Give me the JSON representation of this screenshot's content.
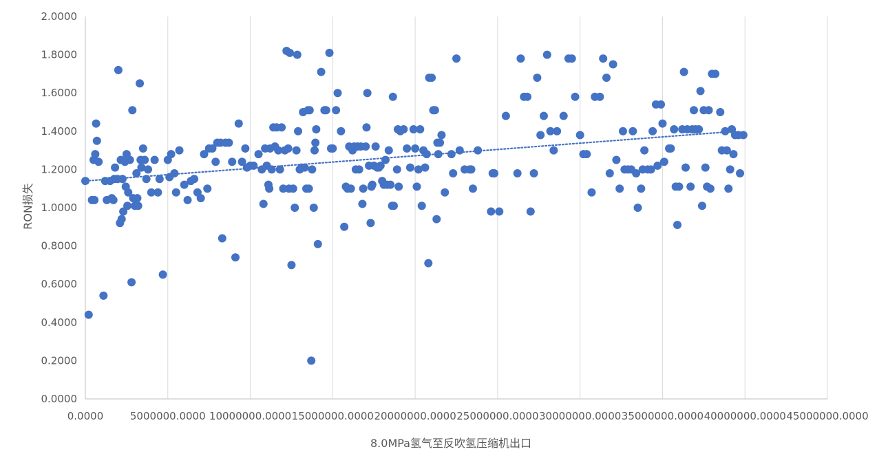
{
  "chart_data": {
    "type": "scatter",
    "title": "",
    "xlabel": "8.0MPa氢气至反吹氢压缩机出口",
    "ylabel": "RON损失",
    "xlim": [
      0,
      45000000
    ],
    "ylim": [
      0,
      2.0
    ],
    "x_ticks": [
      0,
      5000000,
      10000000,
      15000000,
      20000000,
      25000000,
      30000000,
      35000000,
      40000000,
      45000000
    ],
    "x_tick_labels": [
      "0.0000",
      "5000000.0000",
      "10000000.0000",
      "15000000.0000",
      "20000000.0000",
      "25000000.0000",
      "30000000.0000",
      "35000000.0000",
      "40000000.0000",
      "45000000.0000"
    ],
    "y_ticks": [
      0,
      0.2,
      0.4,
      0.6,
      0.8,
      1.0,
      1.2,
      1.4,
      1.6,
      1.8,
      2.0
    ],
    "y_tick_labels": [
      "0.0000",
      "0.2000",
      "0.4000",
      "0.6000",
      "0.8000",
      "1.0000",
      "1.2000",
      "1.4000",
      "1.6000",
      "1.8000",
      "2.0000"
    ],
    "grid": "vertical",
    "legend": "none",
    "trendline": {
      "type": "linear",
      "x": [
        0,
        39500000
      ],
      "y": [
        1.14,
        1.4
      ]
    },
    "colors": {
      "marker": "#4472c4",
      "trendline": "#4472c4",
      "grid": "#d9d9d9",
      "axis": "#bfbfbf",
      "text": "#595959"
    },
    "series": [
      {
        "points": [
          [
            0,
            1.14
          ],
          [
            200000,
            0.44
          ],
          [
            400000,
            1.04
          ],
          [
            500000,
            1.25
          ],
          [
            550000,
            1.04
          ],
          [
            600000,
            1.28
          ],
          [
            650000,
            1.44
          ],
          [
            700000,
            1.35
          ],
          [
            800000,
            1.24
          ],
          [
            1100000,
            0.54
          ],
          [
            1200000,
            1.14
          ],
          [
            1300000,
            1.04
          ],
          [
            1500000,
            1.14
          ],
          [
            1600000,
            1.05
          ],
          [
            1700000,
            1.04
          ],
          [
            1750000,
            1.15
          ],
          [
            1800000,
            1.21
          ],
          [
            1950000,
            1.15
          ],
          [
            2000000,
            1.72
          ],
          [
            2100000,
            0.92
          ],
          [
            2200000,
            0.94
          ],
          [
            2150000,
            1.25
          ],
          [
            2300000,
            0.98
          ],
          [
            2250000,
            1.15
          ],
          [
            2400000,
            1.24
          ],
          [
            2450000,
            1.11
          ],
          [
            2500000,
            1.28
          ],
          [
            2550000,
            1.01
          ],
          [
            2600000,
            1.08
          ],
          [
            2700000,
            1.25
          ],
          [
            2800000,
            0.61
          ],
          [
            2850000,
            1.51
          ],
          [
            2900000,
            1.05
          ],
          [
            3000000,
            1.01
          ],
          [
            3100000,
            1.18
          ],
          [
            3150000,
            1.05
          ],
          [
            3200000,
            1.01
          ],
          [
            3300000,
            1.65
          ],
          [
            3350000,
            1.25
          ],
          [
            3400000,
            1.21
          ],
          [
            3500000,
            1.31
          ],
          [
            3600000,
            1.25
          ],
          [
            3700000,
            1.15
          ],
          [
            3800000,
            1.2
          ],
          [
            4000000,
            1.08
          ],
          [
            4200000,
            1.25
          ],
          [
            4400000,
            1.08
          ],
          [
            4500000,
            1.15
          ],
          [
            4700000,
            0.65
          ],
          [
            5000000,
            1.25
          ],
          [
            5100000,
            1.16
          ],
          [
            5200000,
            1.28
          ],
          [
            5400000,
            1.18
          ],
          [
            5500000,
            1.08
          ],
          [
            5700000,
            1.3
          ],
          [
            6000000,
            1.12
          ],
          [
            6200000,
            1.04
          ],
          [
            6400000,
            1.14
          ],
          [
            6600000,
            1.15
          ],
          [
            6800000,
            1.08
          ],
          [
            7000000,
            1.05
          ],
          [
            7200000,
            1.28
          ],
          [
            7400000,
            1.1
          ],
          [
            7500000,
            1.31
          ],
          [
            7700000,
            1.31
          ],
          [
            7900000,
            1.24
          ],
          [
            8000000,
            1.34
          ],
          [
            8200000,
            1.34
          ],
          [
            8300000,
            0.84
          ],
          [
            8500000,
            1.34
          ],
          [
            8700000,
            1.34
          ],
          [
            8900000,
            1.24
          ],
          [
            9100000,
            0.74
          ],
          [
            9300000,
            1.44
          ],
          [
            9500000,
            1.24
          ],
          [
            9700000,
            1.31
          ],
          [
            9800000,
            1.21
          ],
          [
            10000000,
            1.22
          ],
          [
            10200000,
            1.22
          ],
          [
            10500000,
            1.28
          ],
          [
            10700000,
            1.2
          ],
          [
            10800000,
            1.02
          ],
          [
            10900000,
            1.31
          ],
          [
            11000000,
            1.22
          ],
          [
            11100000,
            1.12
          ],
          [
            11150000,
            1.1
          ],
          [
            11200000,
            1.31
          ],
          [
            11300000,
            1.2
          ],
          [
            11400000,
            1.42
          ],
          [
            11500000,
            1.32
          ],
          [
            11600000,
            1.42
          ],
          [
            11700000,
            1.3
          ],
          [
            11800000,
            1.2
          ],
          [
            11900000,
            1.42
          ],
          [
            12000000,
            1.1
          ],
          [
            12100000,
            1.3
          ],
          [
            12200000,
            1.82
          ],
          [
            12300000,
            1.31
          ],
          [
            12350000,
            1.1
          ],
          [
            12400000,
            1.81
          ],
          [
            12500000,
            0.7
          ],
          [
            12600000,
            1.1
          ],
          [
            12700000,
            1.0
          ],
          [
            12800000,
            1.3
          ],
          [
            12850000,
            1.8
          ],
          [
            12900000,
            1.4
          ],
          [
            13000000,
            1.2
          ],
          [
            13100000,
            1.21
          ],
          [
            13200000,
            1.5
          ],
          [
            13300000,
            1.21
          ],
          [
            13400000,
            1.1
          ],
          [
            13500000,
            1.51
          ],
          [
            13550000,
            1.1
          ],
          [
            13600000,
            1.51
          ],
          [
            13700000,
            0.2
          ],
          [
            13750000,
            1.2
          ],
          [
            13850000,
            1.0
          ],
          [
            13900000,
            1.3
          ],
          [
            13950000,
            1.34
          ],
          [
            14000000,
            1.41
          ],
          [
            14100000,
            0.81
          ],
          [
            14300000,
            1.71
          ],
          [
            14500000,
            1.51
          ],
          [
            14600000,
            1.51
          ],
          [
            14800000,
            1.81
          ],
          [
            14900000,
            1.31
          ],
          [
            15000000,
            1.31
          ],
          [
            15200000,
            1.51
          ],
          [
            15300000,
            1.6
          ],
          [
            15500000,
            1.4
          ],
          [
            15700000,
            0.9
          ],
          [
            15800000,
            1.11
          ],
          [
            15900000,
            1.1
          ],
          [
            16000000,
            1.32
          ],
          [
            16100000,
            1.1
          ],
          [
            16200000,
            1.3
          ],
          [
            16300000,
            1.32
          ],
          [
            16400000,
            1.2
          ],
          [
            16500000,
            1.32
          ],
          [
            16600000,
            1.2
          ],
          [
            16700000,
            1.32
          ],
          [
            16800000,
            1.02
          ],
          [
            16850000,
            1.1
          ],
          [
            17000000,
            1.32
          ],
          [
            17050000,
            1.42
          ],
          [
            17100000,
            1.6
          ],
          [
            17200000,
            1.22
          ],
          [
            17300000,
            0.92
          ],
          [
            17350000,
            1.11
          ],
          [
            17400000,
            1.12
          ],
          [
            17500000,
            1.22
          ],
          [
            17600000,
            1.32
          ],
          [
            17700000,
            1.21
          ],
          [
            17800000,
            1.21
          ],
          [
            17900000,
            1.22
          ],
          [
            18000000,
            1.14
          ],
          [
            18100000,
            1.12
          ],
          [
            18200000,
            1.25
          ],
          [
            18300000,
            1.12
          ],
          [
            18400000,
            1.3
          ],
          [
            18500000,
            1.12
          ],
          [
            18600000,
            1.01
          ],
          [
            18650000,
            1.58
          ],
          [
            18700000,
            1.01
          ],
          [
            18900000,
            1.2
          ],
          [
            18950000,
            1.41
          ],
          [
            19000000,
            1.11
          ],
          [
            19100000,
            1.4
          ],
          [
            19300000,
            1.41
          ],
          [
            19500000,
            1.31
          ],
          [
            19700000,
            1.21
          ],
          [
            19900000,
            1.41
          ],
          [
            20000000,
            1.31
          ],
          [
            20100000,
            1.11
          ],
          [
            20200000,
            1.2
          ],
          [
            20300000,
            1.41
          ],
          [
            20400000,
            1.01
          ],
          [
            20500000,
            1.3
          ],
          [
            20600000,
            1.21
          ],
          [
            20700000,
            1.28
          ],
          [
            20800000,
            0.71
          ],
          [
            20850000,
            1.68
          ],
          [
            21000000,
            1.68
          ],
          [
            21100000,
            1.51
          ],
          [
            21200000,
            1.51
          ],
          [
            21300000,
            0.94
          ],
          [
            21350000,
            1.34
          ],
          [
            21400000,
            1.28
          ],
          [
            21500000,
            1.34
          ],
          [
            21600000,
            1.38
          ],
          [
            21800000,
            1.08
          ],
          [
            22200000,
            1.28
          ],
          [
            22300000,
            1.18
          ],
          [
            22500000,
            1.78
          ],
          [
            22700000,
            1.3
          ],
          [
            23000000,
            1.2
          ],
          [
            23300000,
            1.2
          ],
          [
            23400000,
            1.2
          ],
          [
            23500000,
            1.1
          ],
          [
            23800000,
            1.3
          ],
          [
            24600000,
            0.98
          ],
          [
            24700000,
            1.18
          ],
          [
            24800000,
            1.18
          ],
          [
            25100000,
            0.98
          ],
          [
            25500000,
            1.48
          ],
          [
            26200000,
            1.18
          ],
          [
            26400000,
            1.78
          ],
          [
            26600000,
            1.58
          ],
          [
            26800000,
            1.58
          ],
          [
            27000000,
            0.98
          ],
          [
            27200000,
            1.18
          ],
          [
            27400000,
            1.68
          ],
          [
            27600000,
            1.38
          ],
          [
            27800000,
            1.48
          ],
          [
            28000000,
            1.8
          ],
          [
            28200000,
            1.4
          ],
          [
            28400000,
            1.3
          ],
          [
            28600000,
            1.4
          ],
          [
            29000000,
            1.48
          ],
          [
            29300000,
            1.78
          ],
          [
            29500000,
            1.78
          ],
          [
            29700000,
            1.58
          ],
          [
            30000000,
            1.38
          ],
          [
            30200000,
            1.28
          ],
          [
            30400000,
            1.28
          ],
          [
            30700000,
            1.08
          ],
          [
            30900000,
            1.58
          ],
          [
            31200000,
            1.58
          ],
          [
            31400000,
            1.78
          ],
          [
            31600000,
            1.68
          ],
          [
            31800000,
            1.18
          ],
          [
            32000000,
            1.75
          ],
          [
            32200000,
            1.25
          ],
          [
            32400000,
            1.1
          ],
          [
            32600000,
            1.4
          ],
          [
            32700000,
            1.2
          ],
          [
            32900000,
            1.2
          ],
          [
            33100000,
            1.2
          ],
          [
            33200000,
            1.4
          ],
          [
            33400000,
            1.18
          ],
          [
            33500000,
            1.0
          ],
          [
            33700000,
            1.1
          ],
          [
            33800000,
            1.2
          ],
          [
            33900000,
            1.3
          ],
          [
            34100000,
            1.2
          ],
          [
            34300000,
            1.2
          ],
          [
            34400000,
            1.4
          ],
          [
            34600000,
            1.54
          ],
          [
            34700000,
            1.22
          ],
          [
            34900000,
            1.54
          ],
          [
            35000000,
            1.44
          ],
          [
            35100000,
            1.24
          ],
          [
            35400000,
            1.31
          ],
          [
            35500000,
            1.31
          ],
          [
            35700000,
            1.41
          ],
          [
            35800000,
            1.11
          ],
          [
            35900000,
            0.91
          ],
          [
            36000000,
            1.11
          ],
          [
            36200000,
            1.41
          ],
          [
            36300000,
            1.71
          ],
          [
            36400000,
            1.21
          ],
          [
            36500000,
            1.41
          ],
          [
            36700000,
            1.11
          ],
          [
            36800000,
            1.41
          ],
          [
            36900000,
            1.51
          ],
          [
            37000000,
            1.41
          ],
          [
            37200000,
            1.41
          ],
          [
            37300000,
            1.61
          ],
          [
            37400000,
            1.01
          ],
          [
            37500000,
            1.51
          ],
          [
            37600000,
            1.21
          ],
          [
            37700000,
            1.11
          ],
          [
            37800000,
            1.51
          ],
          [
            37900000,
            1.1
          ],
          [
            38000000,
            1.7
          ],
          [
            38200000,
            1.7
          ],
          [
            38500000,
            1.5
          ],
          [
            38600000,
            1.3
          ],
          [
            38800000,
            1.4
          ],
          [
            38900000,
            1.3
          ],
          [
            39000000,
            1.1
          ],
          [
            39100000,
            1.2
          ],
          [
            39200000,
            1.41
          ],
          [
            39300000,
            1.28
          ],
          [
            39400000,
            1.38
          ],
          [
            39600000,
            1.38
          ],
          [
            39700000,
            1.18
          ],
          [
            39900000,
            1.38
          ]
        ]
      }
    ]
  }
}
